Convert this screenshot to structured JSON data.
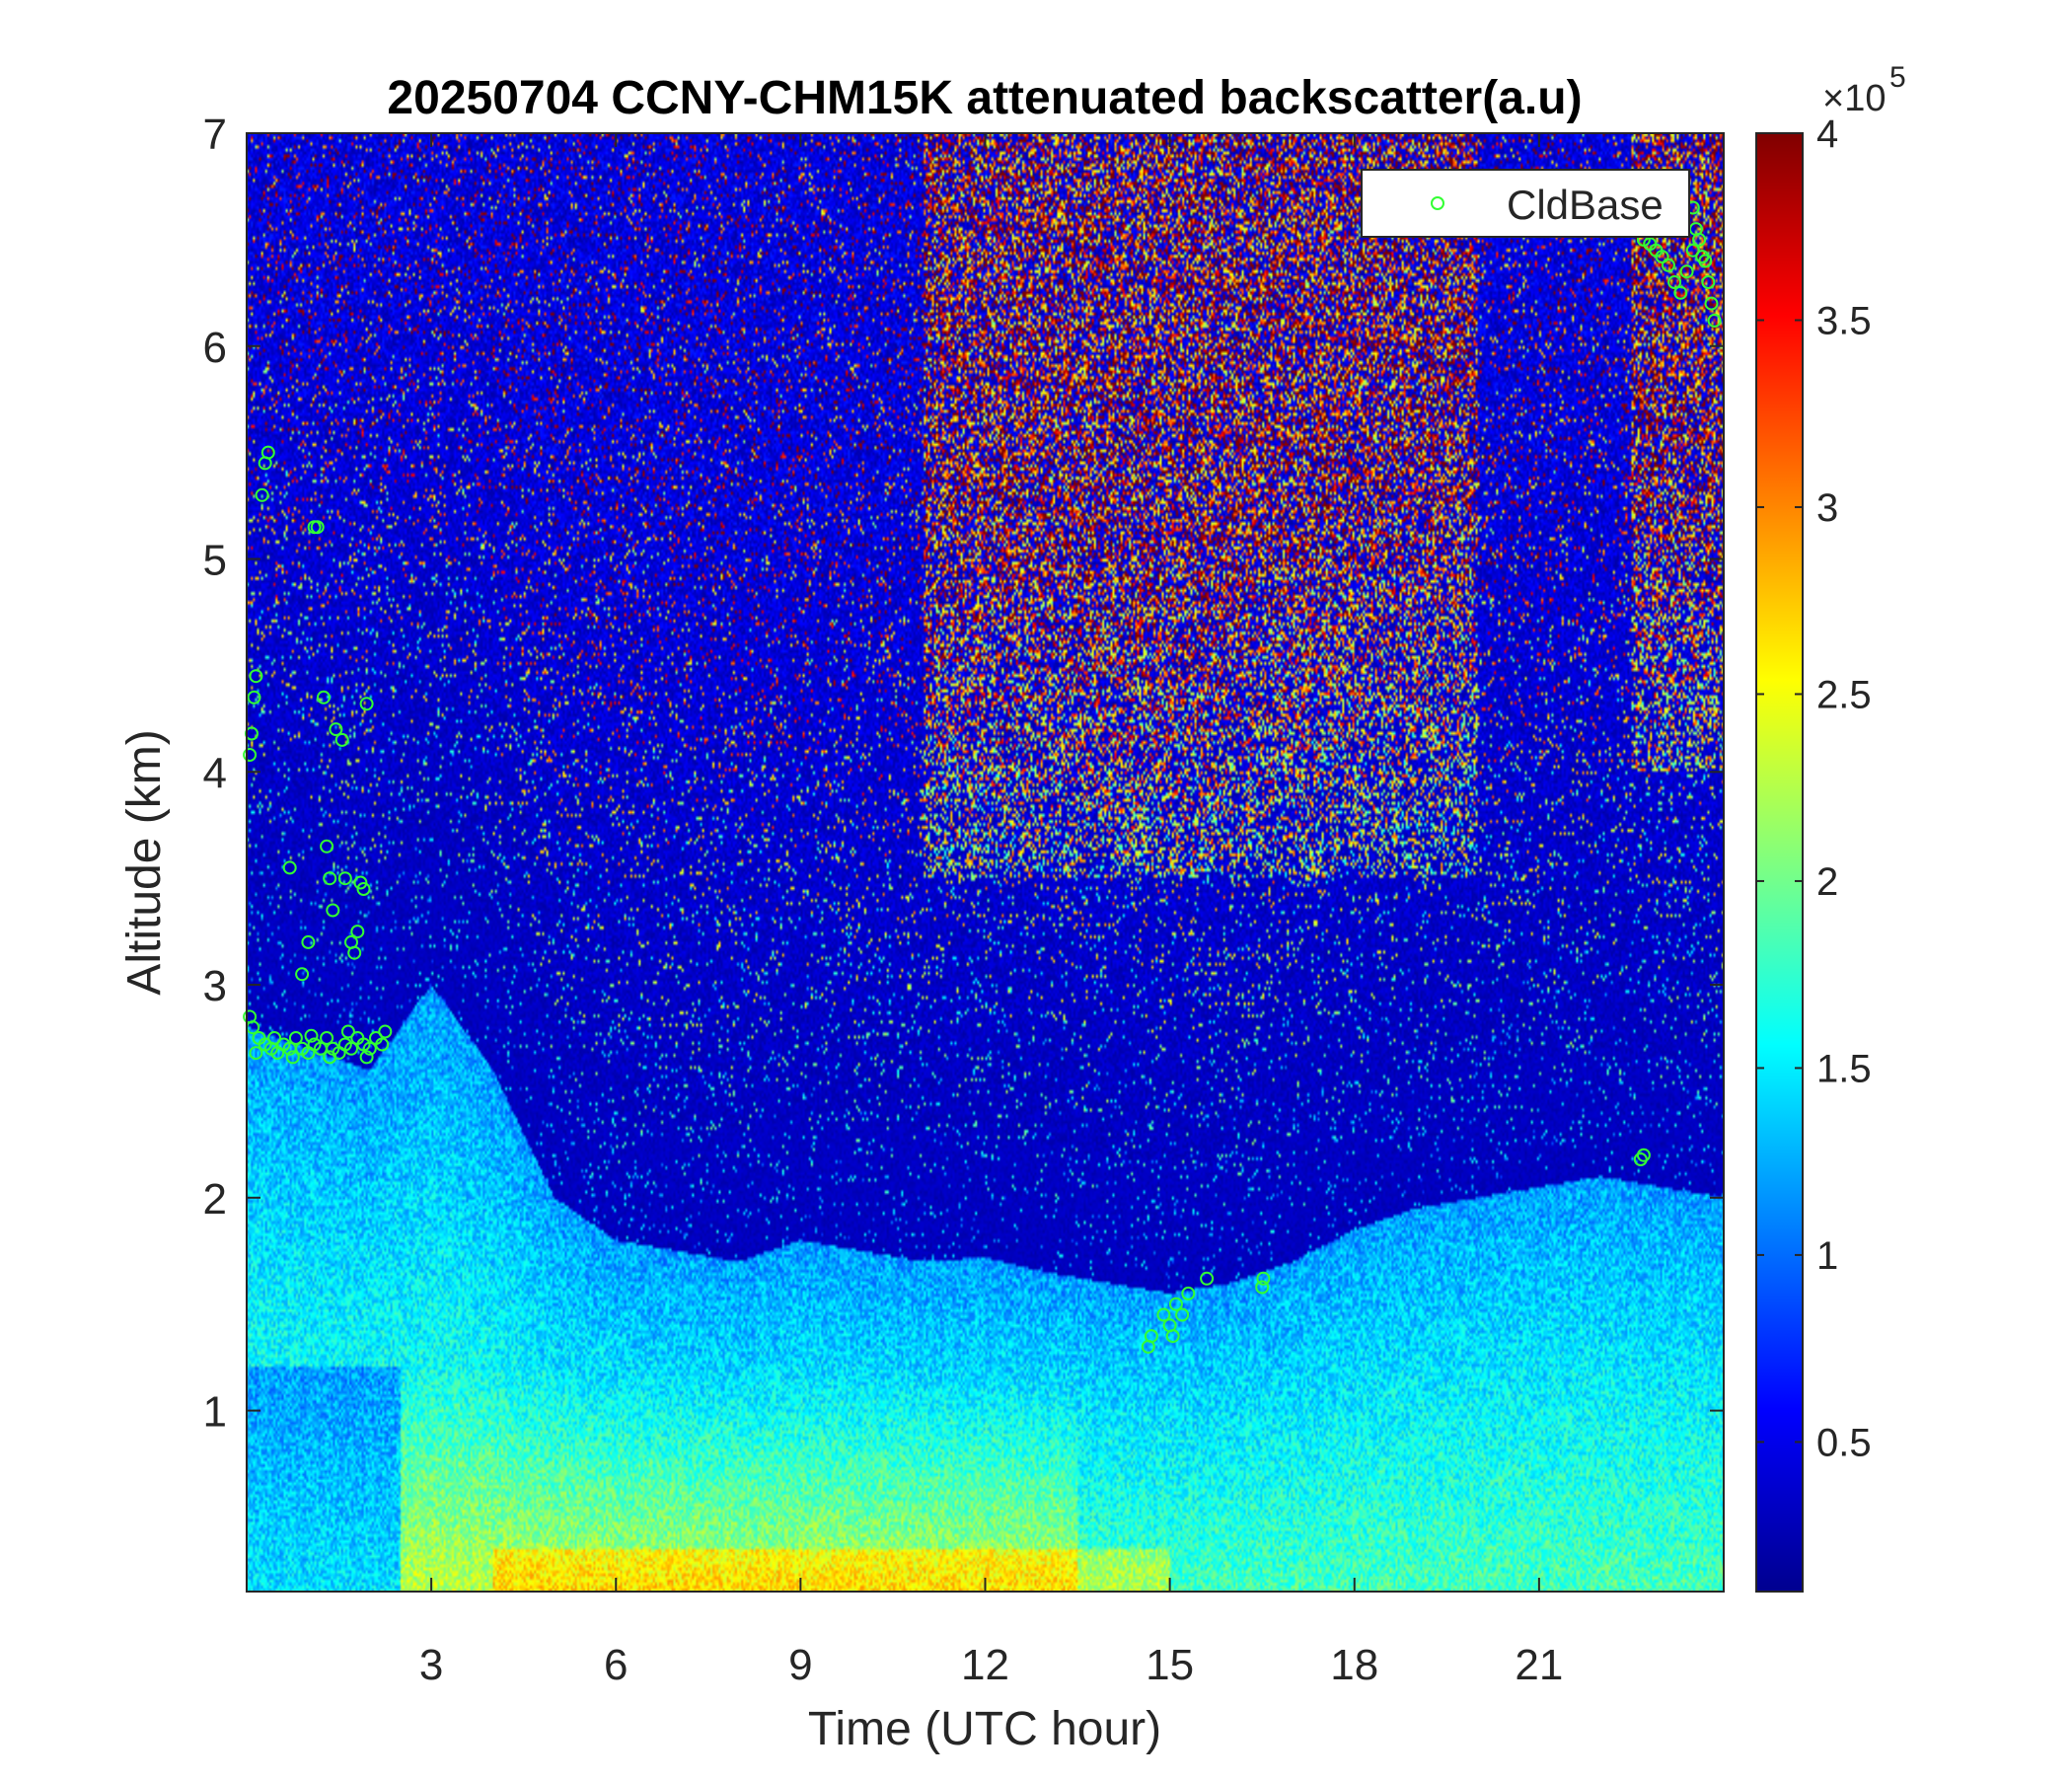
{
  "chart_data": {
    "type": "heatmap",
    "title": "20250704 CCNY-CHM15K attenuated backscatter(a.u)",
    "xlabel": "Time (UTC hour)",
    "ylabel": "Altitude (km)",
    "xlim": [
      0,
      24
    ],
    "ylim": [
      0.15,
      7
    ],
    "xticks": [
      3,
      6,
      9,
      12,
      15,
      18,
      21
    ],
    "xtick_labels": [
      "3",
      "6",
      "9",
      "12",
      "15",
      "18",
      "21"
    ],
    "yticks": [
      1,
      2,
      3,
      4,
      5,
      6,
      7
    ],
    "ytick_labels": [
      "1",
      "2",
      "3",
      "4",
      "5",
      "6",
      "7"
    ],
    "colorbar": {
      "colormap": "jet",
      "range": [
        10000,
        400000
      ],
      "ticks": [
        50000,
        100000,
        150000,
        200000,
        250000,
        300000,
        350000,
        400000
      ],
      "tick_labels": [
        "0.5",
        "1",
        "1.5",
        "2",
        "2.5",
        "3",
        "3.5",
        "4"
      ],
      "exponent_base": "×10",
      "exponent_power": "5"
    },
    "legend": {
      "label": "CldBase",
      "placement": "top-right",
      "marker_color": "#33ff33"
    },
    "boundary_layer_top_km": [
      [
        0,
        2.8
      ],
      [
        1,
        2.7
      ],
      [
        2,
        2.6
      ],
      [
        3,
        3.0
      ],
      [
        4,
        2.6
      ],
      [
        5,
        2.0
      ],
      [
        6,
        1.8
      ],
      [
        7,
        1.75
      ],
      [
        8,
        1.7
      ],
      [
        9,
        1.8
      ],
      [
        10,
        1.75
      ],
      [
        11,
        1.7
      ],
      [
        12,
        1.72
      ],
      [
        13,
        1.65
      ],
      [
        14,
        1.6
      ],
      [
        15,
        1.55
      ],
      [
        16,
        1.6
      ],
      [
        17,
        1.7
      ],
      [
        18,
        1.85
      ],
      [
        19,
        1.95
      ],
      [
        20,
        2.0
      ],
      [
        21,
        2.05
      ],
      [
        22,
        2.1
      ],
      [
        23,
        2.05
      ],
      [
        24,
        2.0
      ]
    ],
    "cloud_base_series": {
      "name": "CldBase",
      "points": [
        [
          0.05,
          4.08
        ],
        [
          0.08,
          4.18
        ],
        [
          0.12,
          4.35
        ],
        [
          0.15,
          4.45
        ],
        [
          0.25,
          5.3
        ],
        [
          0.3,
          5.45
        ],
        [
          0.35,
          5.5
        ],
        [
          0.05,
          2.85
        ],
        [
          0.1,
          2.8
        ],
        [
          0.2,
          2.75
        ],
        [
          0.3,
          2.72
        ],
        [
          0.4,
          2.7
        ],
        [
          0.5,
          2.68
        ],
        [
          0.6,
          2.72
        ],
        [
          0.7,
          2.7
        ],
        [
          0.8,
          2.75
        ],
        [
          0.9,
          2.7
        ],
        [
          1.0,
          2.68
        ],
        [
          1.1,
          2.72
        ],
        [
          1.2,
          2.7
        ],
        [
          1.3,
          2.75
        ],
        [
          1.4,
          2.7
        ],
        [
          1.5,
          2.68
        ],
        [
          1.6,
          2.72
        ],
        [
          1.7,
          2.7
        ],
        [
          1.8,
          2.75
        ],
        [
          1.9,
          2.72
        ],
        [
          2.0,
          2.7
        ],
        [
          2.1,
          2.75
        ],
        [
          2.2,
          2.72
        ],
        [
          0.15,
          2.68
        ],
        [
          0.45,
          2.75
        ],
        [
          0.75,
          2.66
        ],
        [
          1.05,
          2.76
        ],
        [
          1.35,
          2.66
        ],
        [
          1.65,
          2.78
        ],
        [
          1.95,
          2.66
        ],
        [
          2.25,
          2.78
        ],
        [
          0.7,
          3.55
        ],
        [
          0.9,
          3.05
        ],
        [
          1.0,
          3.2
        ],
        [
          1.1,
          5.15
        ],
        [
          1.15,
          5.15
        ],
        [
          1.25,
          4.35
        ],
        [
          1.3,
          3.65
        ],
        [
          1.35,
          3.5
        ],
        [
          1.4,
          3.35
        ],
        [
          1.45,
          4.2
        ],
        [
          1.55,
          4.15
        ],
        [
          1.6,
          3.5
        ],
        [
          1.7,
          3.2
        ],
        [
          1.75,
          3.15
        ],
        [
          1.8,
          3.25
        ],
        [
          1.85,
          3.48
        ],
        [
          1.9,
          3.45
        ],
        [
          1.95,
          4.32
        ],
        [
          14.65,
          1.3
        ],
        [
          14.7,
          1.35
        ],
        [
          14.9,
          1.45
        ],
        [
          15.0,
          1.4
        ],
        [
          15.05,
          1.35
        ],
        [
          15.1,
          1.5
        ],
        [
          15.2,
          1.45
        ],
        [
          15.3,
          1.55
        ],
        [
          15.6,
          1.62
        ],
        [
          16.5,
          1.58
        ],
        [
          16.52,
          1.62
        ],
        [
          22.65,
          2.18
        ],
        [
          22.7,
          2.2
        ],
        [
          22.7,
          6.5
        ],
        [
          22.8,
          6.48
        ],
        [
          22.9,
          6.45
        ],
        [
          23.0,
          6.42
        ],
        [
          23.1,
          6.38
        ],
        [
          23.2,
          6.3
        ],
        [
          23.3,
          6.25
        ],
        [
          23.4,
          6.35
        ],
        [
          23.5,
          6.45
        ],
        [
          23.55,
          6.55
        ],
        [
          23.6,
          6.5
        ],
        [
          23.7,
          6.4
        ],
        [
          23.75,
          6.3
        ],
        [
          23.8,
          6.2
        ],
        [
          23.85,
          6.12
        ],
        [
          23.5,
          6.65
        ],
        [
          23.65,
          6.42
        ]
      ]
    }
  }
}
